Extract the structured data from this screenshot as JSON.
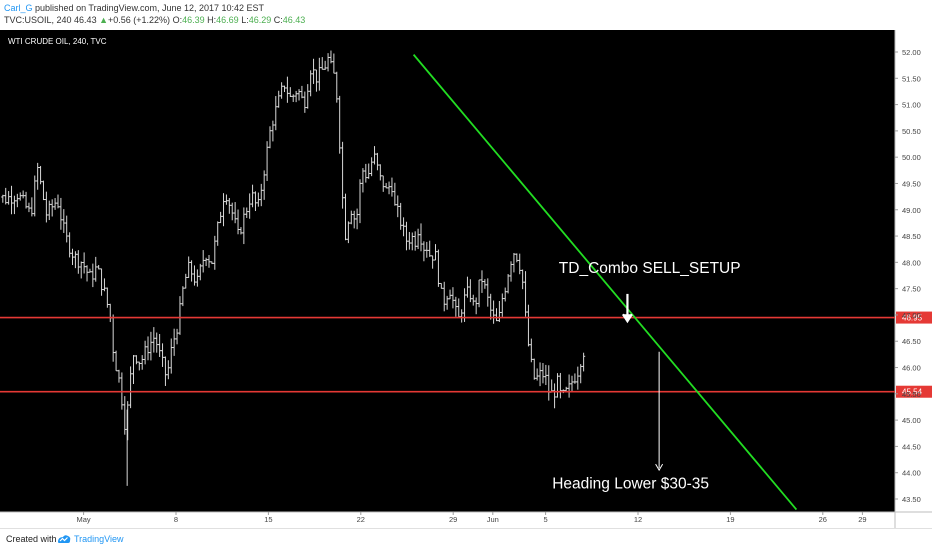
{
  "header": {
    "author": "Carl_G",
    "published_text": "published on TradingView.com, June 12, 2017 10:42 EST",
    "symbol_line": "TVC:USOIL, 240",
    "last": "46.43",
    "change_arrow": "▲",
    "change": "+0.56 (+1.22%)",
    "o_label": "O:",
    "o_value": "46.39",
    "h_label": "H:",
    "h_value": "46.69",
    "l_label": "L:",
    "l_value": "46.29",
    "c_label": "C:",
    "c_value": "46.43"
  },
  "footer": {
    "created_with": "Created with",
    "brand": "TradingView"
  },
  "chart_data": {
    "type": "candlestick",
    "title": "WTI CRUDE OIL, 240, TVC",
    "colors": {
      "background": "#000000",
      "bars": "#d8d8d8",
      "horizontal_lines": "#e53935",
      "trendline": "#22dd22",
      "annotation": "#ffffff",
      "axis_text": "#444444",
      "price_tag_bg": "#e53935"
    },
    "yaxis": {
      "side": "right",
      "range": [
        43.3,
        52.2
      ],
      "ticks": [
        "43.50",
        "44.00",
        "44.50",
        "45.00",
        "45.50",
        "46.00",
        "46.50",
        "47.00",
        "47.50",
        "48.00",
        "48.50",
        "49.00",
        "49.50",
        "50.00",
        "50.50",
        "51.00",
        "51.50",
        "52.00"
      ]
    },
    "xaxis": {
      "tick_labels": [
        {
          "label": "May",
          "x": 1.0
        },
        {
          "label": "8",
          "x": 8.0
        },
        {
          "label": "15",
          "x": 15.0
        },
        {
          "label": "22",
          "x": 22.0
        },
        {
          "label": "29",
          "x": 29.0
        },
        {
          "label": "Jun",
          "x": 32.0
        },
        {
          "label": "5",
          "x": 36.0
        },
        {
          "label": "12",
          "x": 43.0
        },
        {
          "label": "19",
          "x": 50.0
        },
        {
          "label": "26",
          "x": 57.0
        },
        {
          "label": "29",
          "x": 60.0
        }
      ]
    },
    "hlines": [
      {
        "value": 46.95,
        "label": "46.95"
      },
      {
        "value": 45.54,
        "label": "45.54"
      }
    ],
    "trendline": {
      "x1": 26.0,
      "y1": 51.95,
      "x2": 55.0,
      "y2": 43.3
    },
    "annotations": [
      {
        "text": "TD_Combo SELL_SETUP",
        "x": 37.0,
        "y": 47.8
      },
      {
        "text": "Heading Lower $30-35",
        "x": 36.5,
        "y": 43.7
      }
    ],
    "arrows": [
      {
        "x": 42.2,
        "from": 47.4,
        "to": 46.88,
        "head": "large"
      },
      {
        "x": 44.6,
        "from": 46.3,
        "to": 44.05,
        "head": "small"
      }
    ],
    "price_anchors": [
      [
        -6.0,
        49.4
      ],
      [
        -5.0,
        49.2
      ],
      [
        -4.0,
        49.3
      ],
      [
        -3.0,
        48.9
      ],
      [
        -2.5,
        49.8
      ],
      [
        -1.8,
        48.9
      ],
      [
        -1.0,
        49.2
      ],
      [
        -0.4,
        48.5
      ],
      [
        0.3,
        48.1
      ],
      [
        0.9,
        48.0
      ],
      [
        1.5,
        47.7
      ],
      [
        2.0,
        47.9
      ],
      [
        2.6,
        47.4
      ],
      [
        3.0,
        47.0
      ],
      [
        3.3,
        46.2
      ],
      [
        3.6,
        45.9
      ],
      [
        3.9,
        45.4
      ],
      [
        4.2,
        44.8
      ],
      [
        4.5,
        45.7
      ],
      [
        4.8,
        46.3
      ],
      [
        5.3,
        46.1
      ],
      [
        5.9,
        46.4
      ],
      [
        6.4,
        46.6
      ],
      [
        6.8,
        46.2
      ],
      [
        7.3,
        45.8
      ],
      [
        7.7,
        46.4
      ],
      [
        8.2,
        46.9
      ],
      [
        8.6,
        47.6
      ],
      [
        9.0,
        47.9
      ],
      [
        9.6,
        47.6
      ],
      [
        10.2,
        48.2
      ],
      [
        10.7,
        48.0
      ],
      [
        11.2,
        48.7
      ],
      [
        11.7,
        49.4
      ],
      [
        12.2,
        49.0
      ],
      [
        12.7,
        48.5
      ],
      [
        13.2,
        48.9
      ],
      [
        13.7,
        49.3
      ],
      [
        14.2,
        49.0
      ],
      [
        14.7,
        49.8
      ],
      [
        15.2,
        50.6
      ],
      [
        15.7,
        51.0
      ],
      [
        16.2,
        51.4
      ],
      [
        16.7,
        51.1
      ],
      [
        17.2,
        51.3
      ],
      [
        17.7,
        51.0
      ],
      [
        18.2,
        51.7
      ],
      [
        18.7,
        51.5
      ],
      [
        19.2,
        51.7
      ],
      [
        19.6,
        51.9
      ],
      [
        19.8,
        51.6
      ],
      [
        20.1,
        51.5
      ],
      [
        20.4,
        50.3
      ],
      [
        20.6,
        49.3
      ],
      [
        20.8,
        48.5
      ],
      [
        21.1,
        48.9
      ],
      [
        21.4,
        49.1
      ],
      [
        21.6,
        48.6
      ],
      [
        21.9,
        49.4
      ],
      [
        22.2,
        49.8
      ],
      [
        22.5,
        49.6
      ],
      [
        22.8,
        49.9
      ],
      [
        23.1,
        50.0
      ],
      [
        23.4,
        49.6
      ],
      [
        23.7,
        49.5
      ],
      [
        24.0,
        49.3
      ],
      [
        24.3,
        49.6
      ],
      [
        24.6,
        49.0
      ],
      [
        24.9,
        48.9
      ],
      [
        25.2,
        48.6
      ],
      [
        25.5,
        48.4
      ],
      [
        25.8,
        48.5
      ],
      [
        26.1,
        48.4
      ],
      [
        26.4,
        48.7
      ],
      [
        26.7,
        48.3
      ],
      [
        27.0,
        48.3
      ],
      [
        27.3,
        48.1
      ],
      [
        27.6,
        48.2
      ],
      [
        27.9,
        47.7
      ],
      [
        28.2,
        47.2
      ],
      [
        28.5,
        47.4
      ],
      [
        28.8,
        47.5
      ],
      [
        29.1,
        47.1
      ],
      [
        29.4,
        46.9
      ],
      [
        29.7,
        47.2
      ],
      [
        30.0,
        47.4
      ],
      [
        30.3,
        47.4
      ],
      [
        30.6,
        47.1
      ],
      [
        30.9,
        47.5
      ],
      [
        31.2,
        47.7
      ],
      [
        31.5,
        47.4
      ],
      [
        31.8,
        47.1
      ],
      [
        32.1,
        46.9
      ],
      [
        32.4,
        46.8
      ],
      [
        32.7,
        47.3
      ],
      [
        33.0,
        47.6
      ],
      [
        33.3,
        48.0
      ],
      [
        33.6,
        48.2
      ],
      [
        33.9,
        48.1
      ],
      [
        34.2,
        47.8
      ],
      [
        34.5,
        46.9
      ],
      [
        34.8,
        46.2
      ],
      [
        35.1,
        45.8
      ],
      [
        35.4,
        45.8
      ],
      [
        35.7,
        45.9
      ],
      [
        36.0,
        45.8
      ],
      [
        36.3,
        45.5
      ],
      [
        36.6,
        45.5
      ],
      [
        36.9,
        45.7
      ],
      [
        37.2,
        45.4
      ],
      [
        37.5,
        45.5
      ],
      [
        37.8,
        45.6
      ],
      [
        38.1,
        45.8
      ],
      [
        38.4,
        45.9
      ],
      [
        38.7,
        46.2
      ],
      [
        39.0,
        46.4
      ]
    ]
  }
}
